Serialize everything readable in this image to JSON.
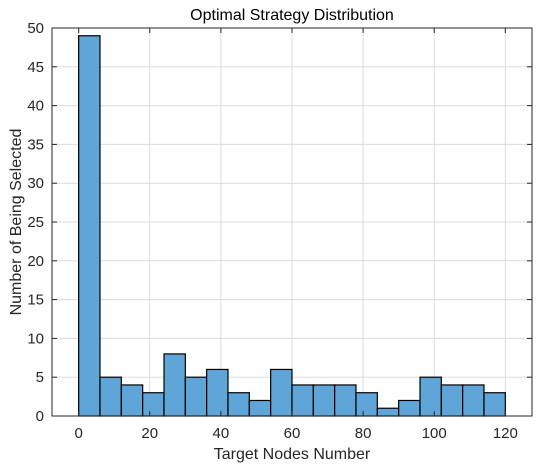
{
  "chart_data": {
    "type": "bar",
    "title": "Optimal Strategy Distribution",
    "xlabel": "Target Nodes Number",
    "ylabel": "Number of Being Selected",
    "bin_width": 6,
    "x_start": 0,
    "values": [
      49,
      5,
      4,
      3,
      8,
      5,
      6,
      3,
      2,
      6,
      4,
      4,
      4,
      3,
      1,
      2,
      5,
      4,
      4,
      3
    ],
    "xlim": [
      -7.5,
      127.5
    ],
    "ylim": [
      0,
      50
    ],
    "xticks": [
      0,
      20,
      40,
      60,
      80,
      100,
      120
    ],
    "yticks": [
      0,
      5,
      10,
      15,
      20,
      25,
      30,
      35,
      40,
      45,
      50
    ],
    "grid": true,
    "bar_color": "#5fa5d8",
    "edge_color": "#000000"
  }
}
